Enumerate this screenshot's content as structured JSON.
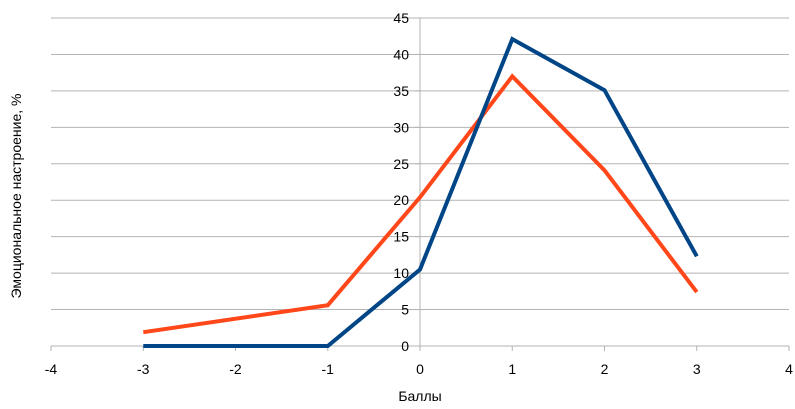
{
  "chart_data": {
    "type": "line",
    "title": "",
    "xlabel": "Баллы",
    "ylabel": "Эмоциональное настроение, %",
    "xlim": [
      -4,
      4
    ],
    "ylim": [
      0,
      45
    ],
    "x_ticks": [
      -4,
      -3,
      -2,
      -1,
      0,
      1,
      2,
      3,
      4
    ],
    "y_ticks": [
      0,
      5,
      10,
      15,
      20,
      25,
      30,
      35,
      40,
      45
    ],
    "grid": "horizontal",
    "legend": "none",
    "series": [
      {
        "color": "#ff4719",
        "x": [
          -3,
          -1,
          0,
          1,
          2,
          3
        ],
        "y": [
          1.9,
          5.6,
          20.4,
          37.0,
          24.1,
          7.4
        ]
      },
      {
        "color": "#004586",
        "x": [
          -3,
          -1,
          0,
          1,
          2,
          3
        ],
        "y": [
          0.0,
          0.0,
          10.5,
          42.1,
          35.1,
          12.3
        ]
      }
    ]
  }
}
